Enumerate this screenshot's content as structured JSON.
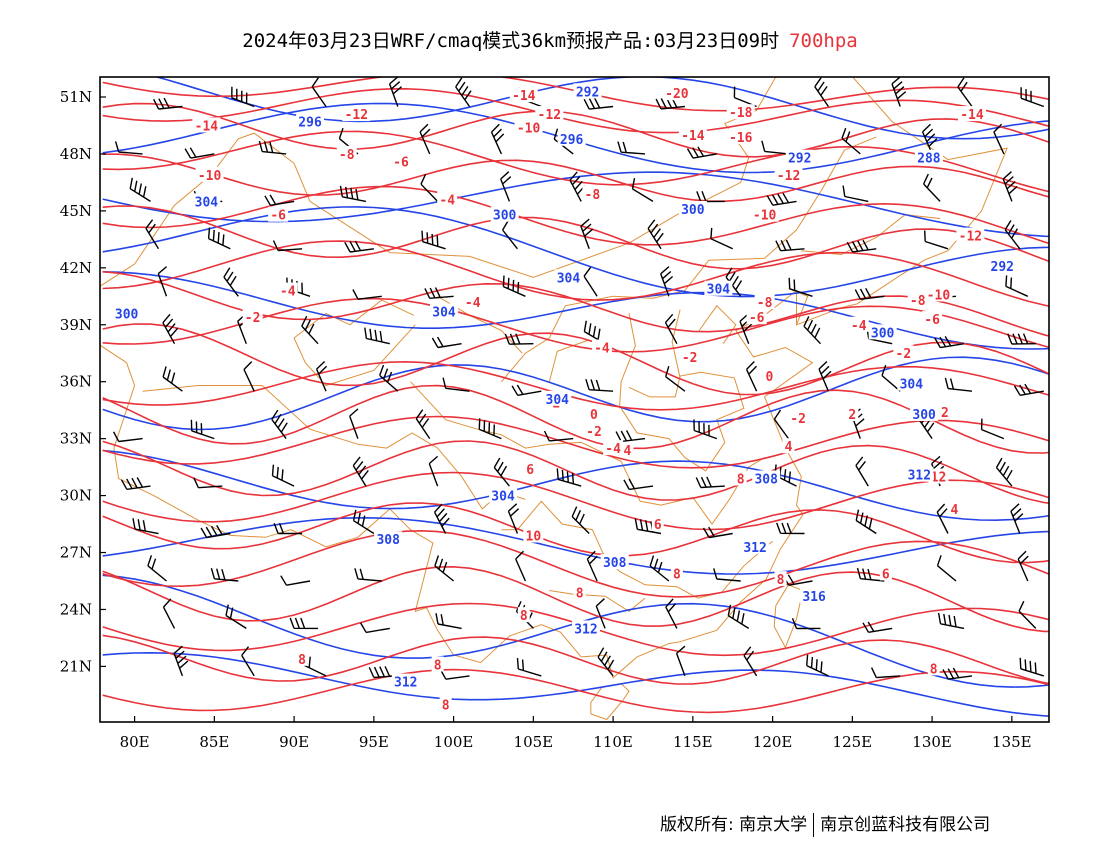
{
  "title": {
    "main": "2024年03月23日WRF/cmaq模式36km预报产品:03月23日09时",
    "level": "700hpa"
  },
  "colors": {
    "temperature": "#e8333a",
    "height": "#2545e8",
    "border": "#e0913a",
    "wind": "#000000"
  },
  "axes": {
    "lat_labels": [
      "51N",
      "48N",
      "45N",
      "42N",
      "39N",
      "36N",
      "33N",
      "30N",
      "27N",
      "24N",
      "21N"
    ],
    "lon_labels": [
      "80E",
      "85E",
      "90E",
      "95E",
      "100E",
      "105E",
      "110E",
      "115E",
      "120E",
      "125E",
      "130E",
      "135E"
    ]
  },
  "contour_labels": {
    "temperature": [
      {
        "t": "-14",
        "lon": 104.4,
        "lat": 51.1
      },
      {
        "t": "-20",
        "lon": 114.0,
        "lat": 51.2
      },
      {
        "t": "-14",
        "lon": 84.5,
        "lat": 49.5
      },
      {
        "t": "-12",
        "lon": 93.9,
        "lat": 50.1
      },
      {
        "t": "-12",
        "lon": 106.0,
        "lat": 50.1
      },
      {
        "t": "-18",
        "lon": 118.0,
        "lat": 50.2
      },
      {
        "t": "-14",
        "lon": 132.5,
        "lat": 50.1
      },
      {
        "t": "-10",
        "lon": 104.7,
        "lat": 49.4
      },
      {
        "t": "-14",
        "lon": 115.0,
        "lat": 49.0
      },
      {
        "t": "-16",
        "lon": 118.0,
        "lat": 48.9
      },
      {
        "t": "-8",
        "lon": 93.3,
        "lat": 48.0
      },
      {
        "t": "-6",
        "lon": 96.7,
        "lat": 47.6
      },
      {
        "t": "-10",
        "lon": 84.7,
        "lat": 46.9
      },
      {
        "t": "-12",
        "lon": 121.0,
        "lat": 46.9
      },
      {
        "t": "-8",
        "lon": 108.7,
        "lat": 45.9
      },
      {
        "t": "-4",
        "lon": 99.6,
        "lat": 45.6
      },
      {
        "t": "-6",
        "lon": 89.0,
        "lat": 44.8
      },
      {
        "t": "-10",
        "lon": 119.5,
        "lat": 44.8
      },
      {
        "t": "-12",
        "lon": 132.4,
        "lat": 43.7
      },
      {
        "t": "-4",
        "lon": 89.6,
        "lat": 40.8
      },
      {
        "t": "-4",
        "lon": 101.2,
        "lat": 40.2
      },
      {
        "t": "-8",
        "lon": 119.5,
        "lat": 40.2
      },
      {
        "t": "-8",
        "lon": 129.1,
        "lat": 40.3
      },
      {
        "t": "-10",
        "lon": 130.4,
        "lat": 40.6
      },
      {
        "t": "-2",
        "lon": 87.4,
        "lat": 39.4
      },
      {
        "t": "-6",
        "lon": 119.0,
        "lat": 39.4
      },
      {
        "t": "-6",
        "lon": 130.0,
        "lat": 39.3
      },
      {
        "t": "-4",
        "lon": 125.4,
        "lat": 39.0
      },
      {
        "t": "-4",
        "lon": 109.3,
        "lat": 37.8
      },
      {
        "t": "-2",
        "lon": 114.8,
        "lat": 37.3
      },
      {
        "t": "-2",
        "lon": 128.2,
        "lat": 37.5
      },
      {
        "t": "0",
        "lon": 119.8,
        "lat": 36.3
      },
      {
        "t": "-2",
        "lon": 106.2,
        "lat": 34.9
      },
      {
        "t": "0",
        "lon": 108.8,
        "lat": 34.3
      },
      {
        "t": "-2",
        "lon": 121.6,
        "lat": 34.1
      },
      {
        "t": "2",
        "lon": 125.0,
        "lat": 34.3
      },
      {
        "t": "2",
        "lon": 130.8,
        "lat": 34.4
      },
      {
        "t": "-2",
        "lon": 108.8,
        "lat": 33.4
      },
      {
        "t": "-4",
        "lon": 110.0,
        "lat": 32.5
      },
      {
        "t": "4",
        "lon": 121.0,
        "lat": 32.6
      },
      {
        "t": "4",
        "lon": 110.9,
        "lat": 32.4
      },
      {
        "t": "6",
        "lon": 104.8,
        "lat": 31.4
      },
      {
        "t": "8",
        "lon": 118.0,
        "lat": 30.9
      },
      {
        "t": "12",
        "lon": 130.4,
        "lat": 31.0
      },
      {
        "t": "4",
        "lon": 131.4,
        "lat": 29.3
      },
      {
        "t": "6",
        "lon": 112.8,
        "lat": 28.5
      },
      {
        "t": "10",
        "lon": 105.0,
        "lat": 27.9
      },
      {
        "t": "8",
        "lon": 114.0,
        "lat": 25.9
      },
      {
        "t": "6",
        "lon": 127.1,
        "lat": 25.9
      },
      {
        "t": "8",
        "lon": 107.9,
        "lat": 24.9
      },
      {
        "t": "8",
        "lon": 120.5,
        "lat": 25.6
      },
      {
        "t": "8",
        "lon": 104.4,
        "lat": 23.7
      },
      {
        "t": "8",
        "lon": 90.5,
        "lat": 21.4
      },
      {
        "t": "8",
        "lon": 99.0,
        "lat": 21.1
      },
      {
        "t": "8",
        "lon": 130.1,
        "lat": 20.9
      },
      {
        "t": "8",
        "lon": 99.5,
        "lat": 19.0
      }
    ],
    "height": [
      {
        "t": "292",
        "lon": 108.4,
        "lat": 51.3
      },
      {
        "t": "296",
        "lon": 91.0,
        "lat": 49.7
      },
      {
        "t": "296",
        "lon": 107.4,
        "lat": 48.8
      },
      {
        "t": "292",
        "lon": 121.7,
        "lat": 47.8
      },
      {
        "t": "288",
        "lon": 129.8,
        "lat": 47.8
      },
      {
        "t": "304",
        "lon": 84.5,
        "lat": 45.5
      },
      {
        "t": "300",
        "lon": 103.2,
        "lat": 44.8
      },
      {
        "t": "300",
        "lon": 115.0,
        "lat": 45.1
      },
      {
        "t": "292",
        "lon": 134.4,
        "lat": 42.1
      },
      {
        "t": "304",
        "lon": 107.2,
        "lat": 41.5
      },
      {
        "t": "304",
        "lon": 116.6,
        "lat": 40.9
      },
      {
        "t": "304",
        "lon": 99.4,
        "lat": 39.7
      },
      {
        "t": "300",
        "lon": 126.9,
        "lat": 38.6
      },
      {
        "t": "300",
        "lon": 79.5,
        "lat": 39.6
      },
      {
        "t": "304",
        "lon": 128.7,
        "lat": 35.9
      },
      {
        "t": "304",
        "lon": 106.5,
        "lat": 35.1
      },
      {
        "t": "300",
        "lon": 129.5,
        "lat": 34.3
      },
      {
        "t": "308",
        "lon": 119.6,
        "lat": 30.9
      },
      {
        "t": "312",
        "lon": 129.2,
        "lat": 31.1
      },
      {
        "t": "304",
        "lon": 103.1,
        "lat": 30.0
      },
      {
        "t": "308",
        "lon": 95.9,
        "lat": 27.7
      },
      {
        "t": "312",
        "lon": 118.9,
        "lat": 27.3
      },
      {
        "t": "308",
        "lon": 110.1,
        "lat": 26.5
      },
      {
        "t": "316",
        "lon": 122.6,
        "lat": 24.7
      },
      {
        "t": "312",
        "lon": 108.3,
        "lat": 23.0
      },
      {
        "t": "312",
        "lon": 97.0,
        "lat": 20.2
      }
    ]
  }
}
